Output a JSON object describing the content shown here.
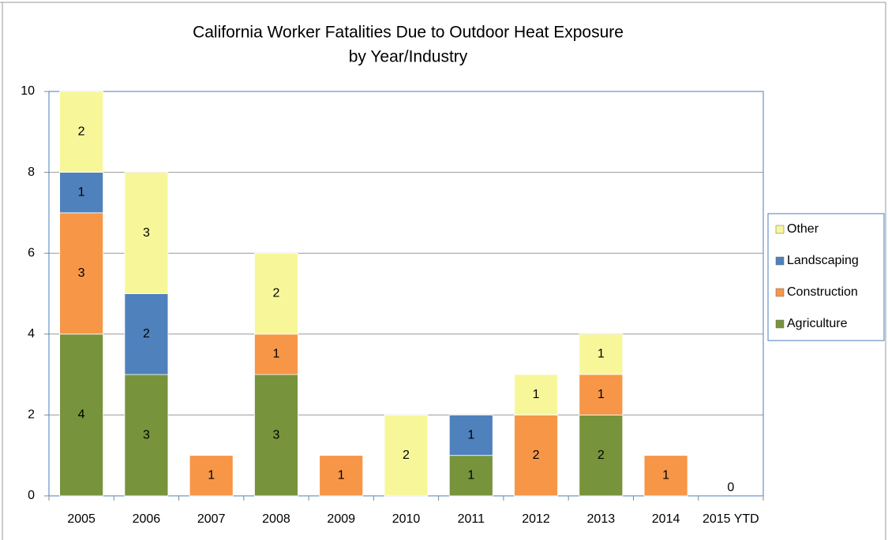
{
  "chart_data": {
    "type": "stacked_bar",
    "title": "California Worker Fatalities Due to Outdoor Heat Exposure",
    "subtitle": "by Year/Industry",
    "categories": [
      "2005",
      "2006",
      "2007",
      "2008",
      "2009",
      "2010",
      "2011",
      "2012",
      "2013",
      "2014",
      "2015 YTD"
    ],
    "series": [
      {
        "name": "Agriculture",
        "color": "#77933c",
        "values": [
          4,
          3,
          null,
          3,
          null,
          null,
          1,
          null,
          2,
          null,
          0
        ]
      },
      {
        "name": "Construction",
        "color": "#f79646",
        "values": [
          3,
          null,
          1,
          1,
          1,
          null,
          null,
          2,
          1,
          1,
          null
        ]
      },
      {
        "name": "Landscaping",
        "color": "#4f81bd",
        "values": [
          1,
          2,
          null,
          null,
          null,
          null,
          1,
          null,
          null,
          null,
          null
        ]
      },
      {
        "name": "Other",
        "color": "#f7f79a",
        "values": [
          2,
          3,
          null,
          2,
          null,
          2,
          null,
          1,
          1,
          null,
          null
        ]
      }
    ],
    "ylim": [
      0,
      10
    ],
    "yticks": [
      0,
      2,
      4,
      6,
      8,
      10
    ],
    "grid": true,
    "legend": "right"
  }
}
